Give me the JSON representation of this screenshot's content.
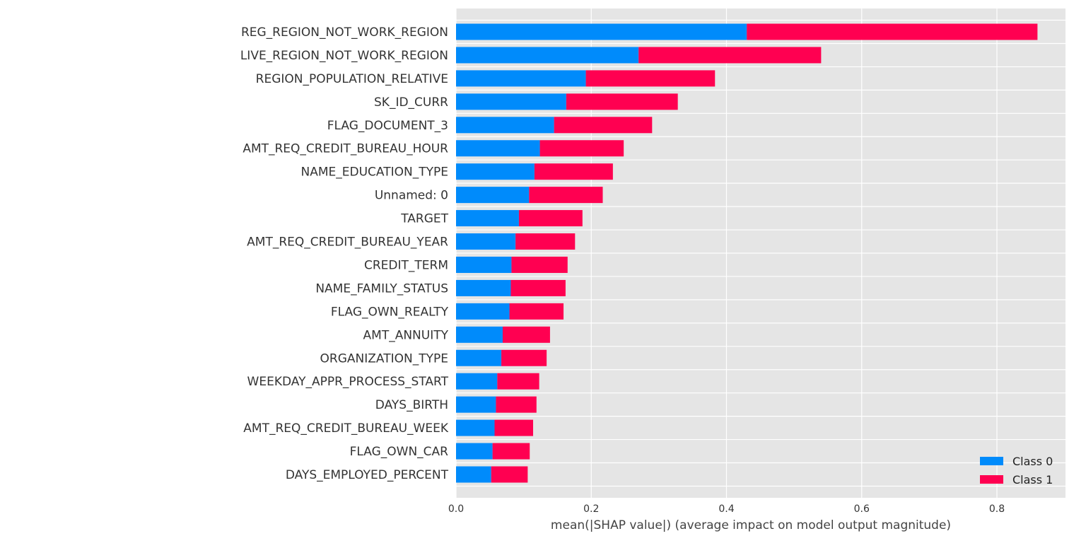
{
  "chart_data": {
    "type": "bar",
    "orientation": "horizontal",
    "stacked": true,
    "title": "",
    "xlabel": "mean(|SHAP value|) (average impact on model output magnitude)",
    "ylabel": "",
    "xlim": [
      0,
      0.9
    ],
    "xticks": [
      0.0,
      0.2,
      0.4,
      0.6,
      0.8
    ],
    "xtick_labels": [
      "0.0",
      "0.2",
      "0.4",
      "0.6",
      "0.8"
    ],
    "grid": true,
    "legend_position": "bottom-right",
    "categories": [
      "REG_REGION_NOT_WORK_REGION",
      "LIVE_REGION_NOT_WORK_REGION",
      "REGION_POPULATION_RELATIVE",
      "SK_ID_CURR",
      "FLAG_DOCUMENT_3",
      "AMT_REQ_CREDIT_BUREAU_HOUR",
      "NAME_EDUCATION_TYPE",
      "Unnamed: 0",
      "TARGET",
      "AMT_REQ_CREDIT_BUREAU_YEAR",
      "CREDIT_TERM",
      "NAME_FAMILY_STATUS",
      "FLAG_OWN_REALTY",
      "AMT_ANNUITY",
      "ORGANIZATION_TYPE",
      "WEEKDAY_APPR_PROCESS_START",
      "DAYS_BIRTH",
      "AMT_REQ_CREDIT_BUREAU_WEEK",
      "FLAG_OWN_CAR",
      "DAYS_EMPLOYED_PERCENT"
    ],
    "series": [
      {
        "name": "Class 0",
        "color": "#008bfb",
        "values": [
          0.43,
          0.27,
          0.192,
          0.163,
          0.145,
          0.124,
          0.116,
          0.108,
          0.093,
          0.088,
          0.082,
          0.081,
          0.079,
          0.069,
          0.067,
          0.061,
          0.059,
          0.057,
          0.054,
          0.052
        ]
      },
      {
        "name": "Class 1",
        "color": "#ff0051",
        "values": [
          0.43,
          0.27,
          0.191,
          0.165,
          0.145,
          0.124,
          0.116,
          0.109,
          0.094,
          0.088,
          0.083,
          0.081,
          0.08,
          0.07,
          0.067,
          0.062,
          0.06,
          0.057,
          0.055,
          0.054
        ]
      }
    ]
  },
  "style": {
    "plot_background": "#e5e5e5",
    "grid_color": "#ffffff",
    "text_color": "#333333"
  }
}
